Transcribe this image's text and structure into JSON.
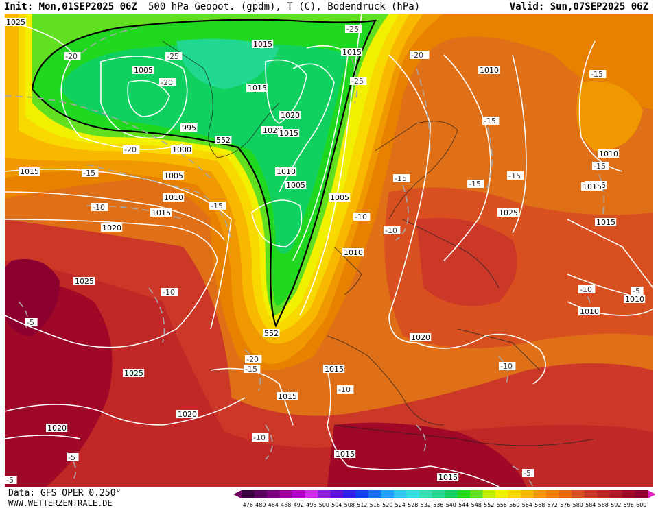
{
  "header": {
    "init": "Init: Mon,01SEP2025 06Z",
    "title": "500 hPa Geopot. (gpdm), T (C), Bodendruck (hPa)",
    "valid": "Valid: Sun,07SEP2025 06Z"
  },
  "footer": {
    "source": "Data: GFS OPER 0.250°",
    "site": "WWW.WETTERZENTRALE.DE"
  },
  "legend": {
    "values": [
      "476",
      "480",
      "484",
      "488",
      "492",
      "496",
      "500",
      "504",
      "508",
      "512",
      "516",
      "520",
      "524",
      "528",
      "532",
      "536",
      "540",
      "544",
      "548",
      "552",
      "556",
      "560",
      "564",
      "568",
      "572",
      "576",
      "580",
      "584",
      "588",
      "592",
      "596",
      "600"
    ],
    "colors": [
      "#3a003f",
      "#5a0060",
      "#7a0080",
      "#9a00a0",
      "#b400c0",
      "#c830e0",
      "#9020e0",
      "#6010e0",
      "#3020f0",
      "#1040f8",
      "#1870f8",
      "#20a0f8",
      "#30c8f0",
      "#30e0e0",
      "#30e0b0",
      "#20d890",
      "#10d060",
      "#20d820",
      "#60e020",
      "#c0f000",
      "#f0f000",
      "#f8d800",
      "#f8b800",
      "#f09800",
      "#e88000",
      "#e06810",
      "#d85020",
      "#cc3828",
      "#c02828",
      "#b01828",
      "#a00828",
      "#8c0030"
    ],
    "arrow_left": "#700060",
    "arrow_right": "#e020c0"
  },
  "map": {
    "pressure_labels": [
      {
        "text": "1025"
      },
      {
        "text": "1015"
      },
      {
        "text": "1015"
      },
      {
        "text": "1005"
      },
      {
        "text": "1010"
      },
      {
        "text": "1015"
      },
      {
        "text": "995"
      },
      {
        "text": "1000"
      },
      {
        "text": "552"
      },
      {
        "text": "1020"
      },
      {
        "text": "1020"
      },
      {
        "text": "1015"
      },
      {
        "text": "1010"
      },
      {
        "text": "1005"
      },
      {
        "text": "1005"
      },
      {
        "text": "1015"
      },
      {
        "text": "1005"
      },
      {
        "text": "1010"
      },
      {
        "text": "1015"
      },
      {
        "text": "1020"
      },
      {
        "text": "1010"
      },
      {
        "text": "1025"
      },
      {
        "text": "1025"
      },
      {
        "text": "1025"
      },
      {
        "text": "1020"
      },
      {
        "text": "1020"
      },
      {
        "text": "552"
      },
      {
        "text": "1015"
      },
      {
        "text": "1015"
      },
      {
        "text": "1020"
      },
      {
        "text": "1015"
      },
      {
        "text": "1015"
      },
      {
        "text": "1025"
      },
      {
        "text": "1010"
      },
      {
        "text": "1015"
      },
      {
        "text": "1015"
      },
      {
        "text": "1010"
      },
      {
        "text": "1010"
      }
    ],
    "temp_labels": [
      {
        "text": "-25"
      },
      {
        "text": "-20"
      },
      {
        "text": "-25"
      },
      {
        "text": "-20"
      },
      {
        "text": "-25"
      },
      {
        "text": "-20"
      },
      {
        "text": "-20"
      },
      {
        "text": "-15"
      },
      {
        "text": "-10"
      },
      {
        "text": "-15"
      },
      {
        "text": "-10"
      },
      {
        "text": "-5"
      },
      {
        "text": "-20"
      },
      {
        "text": "-15"
      },
      {
        "text": "-10"
      },
      {
        "text": "-10"
      },
      {
        "text": "-5"
      },
      {
        "text": "-5"
      },
      {
        "text": "-15"
      },
      {
        "text": "-10"
      },
      {
        "text": "-15"
      },
      {
        "text": "-15"
      },
      {
        "text": "-15"
      },
      {
        "text": "-15"
      },
      {
        "text": "-15"
      },
      {
        "text": "-10"
      },
      {
        "text": "-5"
      },
      {
        "text": "-10"
      },
      {
        "text": "-10"
      },
      {
        "text": "-5"
      },
      {
        "text": "-20"
      }
    ]
  }
}
